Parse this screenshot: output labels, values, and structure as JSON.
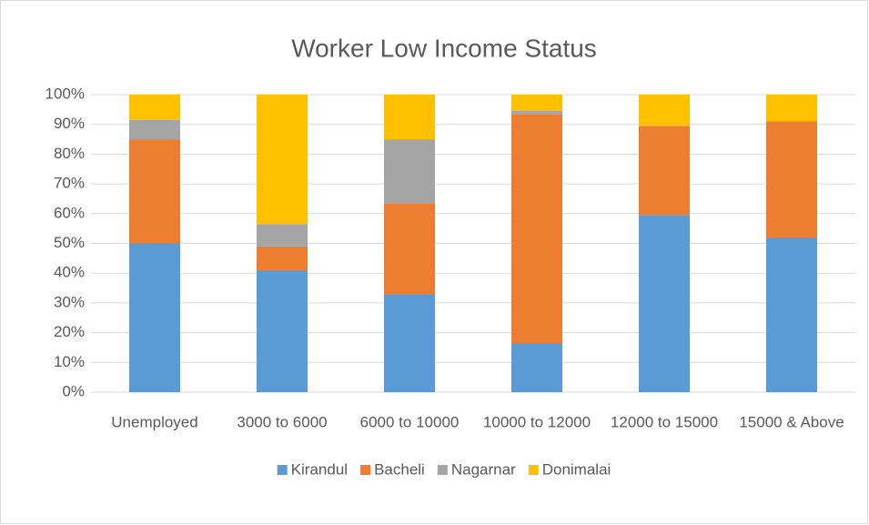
{
  "chart_data": {
    "type": "stacked_bar",
    "title": "Worker Low Income Status",
    "categories": [
      "Unemployed",
      "3000 to 6000",
      "6000 to 10000",
      "10000 to 12000",
      "12000 to 15000",
      "15000 & Above"
    ],
    "series": [
      {
        "name": "Kirandul",
        "color": "#5b9bd5",
        "values": [
          50,
          41,
          33,
          16.5,
          59.5,
          52
        ]
      },
      {
        "name": "Bacheli",
        "color": "#ed7d31",
        "values": [
          35,
          8,
          30.5,
          77,
          30,
          39
        ]
      },
      {
        "name": "Nagarnar",
        "color": "#a5a5a5",
        "values": [
          6.5,
          7.5,
          21.5,
          1,
          0,
          0
        ]
      },
      {
        "name": "Donimalai",
        "color": "#ffc000",
        "values": [
          8.5,
          43.5,
          15,
          5.5,
          10.5,
          9
        ]
      }
    ],
    "ylim": [
      0,
      100
    ],
    "yticks": [
      {
        "value": 0,
        "label": "0%"
      },
      {
        "value": 10,
        "label": "10%"
      },
      {
        "value": 20,
        "label": "20%"
      },
      {
        "value": 30,
        "label": "30%"
      },
      {
        "value": 40,
        "label": "40%"
      },
      {
        "value": 50,
        "label": "50%"
      },
      {
        "value": 60,
        "label": "60%"
      },
      {
        "value": 70,
        "label": "70%"
      },
      {
        "value": 80,
        "label": "80%"
      },
      {
        "value": 90,
        "label": "90%"
      },
      {
        "value": 100,
        "label": "100%"
      }
    ],
    "grid": true,
    "legend": "bottom"
  }
}
